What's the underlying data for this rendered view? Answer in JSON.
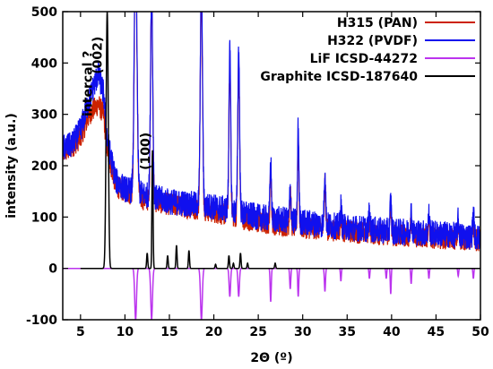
{
  "chart_data": {
    "type": "line",
    "xlabel": "2Θ (º)",
    "ylabel": "intensity (a.u.)",
    "xlim": [
      3,
      50
    ],
    "ylim": [
      -100,
      500
    ],
    "x_ticks": [
      5,
      10,
      15,
      20,
      25,
      30,
      35,
      40,
      45,
      50
    ],
    "y_ticks": [
      -100,
      0,
      100,
      200,
      300,
      400,
      500
    ],
    "legend_position": "top-right",
    "annotations": [
      {
        "text": "intercal ?",
        "x": 6.3,
        "y": 360
      },
      {
        "text": "(002)",
        "x": 7.4,
        "y": 415
      },
      {
        "text": "(100)",
        "x": 12.8,
        "y": 228
      }
    ],
    "series": [
      {
        "name": "H315 (PAN)",
        "color": "#cc2200",
        "noise_amp": 22,
        "background": [
          [
            3,
            225
          ],
          [
            4,
            235
          ],
          [
            5,
            255
          ],
          [
            6,
            300
          ],
          [
            7,
            320
          ],
          [
            7.6,
            300
          ],
          [
            8,
            230
          ],
          [
            9,
            160
          ],
          [
            10,
            150
          ],
          [
            12,
            135
          ],
          [
            15,
            125
          ],
          [
            20,
            110
          ],
          [
            25,
            90
          ],
          [
            30,
            80
          ],
          [
            35,
            72
          ],
          [
            40,
            65
          ],
          [
            45,
            60
          ],
          [
            50,
            55
          ]
        ],
        "peaks": [
          [
            11.2,
            480,
            0.15
          ],
          [
            13.0,
            420,
            0.12
          ],
          [
            18.6,
            440,
            0.12
          ],
          [
            21.8,
            300,
            0.1
          ],
          [
            22.8,
            300,
            0.1
          ],
          [
            26.4,
            100,
            0.08
          ],
          [
            28.6,
            70,
            0.08
          ],
          [
            29.5,
            170,
            0.08
          ],
          [
            32.5,
            100,
            0.08
          ],
          [
            34.3,
            30,
            0.08
          ],
          [
            37.5,
            25,
            0.08
          ],
          [
            39.9,
            45,
            0.08
          ],
          [
            42.2,
            30,
            0.08
          ],
          [
            44.2,
            25,
            0.08
          ],
          [
            47.5,
            20,
            0.08
          ],
          [
            49.2,
            25,
            0.08
          ]
        ]
      },
      {
        "name": "H322 (PVDF)",
        "color": "#1010ee",
        "noise_amp": 26,
        "background": [
          [
            3,
            235
          ],
          [
            4,
            240
          ],
          [
            5,
            270
          ],
          [
            6,
            330
          ],
          [
            7,
            380
          ],
          [
            7.6,
            340
          ],
          [
            8,
            250
          ],
          [
            9,
            170
          ],
          [
            10,
            155
          ],
          [
            12,
            145
          ],
          [
            15,
            130
          ],
          [
            20,
            120
          ],
          [
            25,
            100
          ],
          [
            30,
            90
          ],
          [
            35,
            80
          ],
          [
            40,
            72
          ],
          [
            45,
            68
          ],
          [
            50,
            60
          ]
        ],
        "peaks": [
          [
            11.2,
            480,
            0.15
          ],
          [
            13.0,
            420,
            0.12
          ],
          [
            18.6,
            440,
            0.12
          ],
          [
            21.8,
            310,
            0.1
          ],
          [
            22.8,
            320,
            0.1
          ],
          [
            26.4,
            110,
            0.08
          ],
          [
            28.6,
            60,
            0.08
          ],
          [
            29.5,
            185,
            0.08
          ],
          [
            32.5,
            110,
            0.08
          ],
          [
            34.3,
            40,
            0.08
          ],
          [
            37.5,
            30,
            0.08
          ],
          [
            39.9,
            60,
            0.08
          ],
          [
            42.2,
            40,
            0.08
          ],
          [
            44.2,
            35,
            0.08
          ],
          [
            47.5,
            30,
            0.08
          ],
          [
            49.2,
            45,
            0.08
          ]
        ]
      },
      {
        "name": "LiF ICSD-44272",
        "color": "#bb33ee",
        "baseline": 0,
        "direction": -1,
        "peaks": [
          [
            11.2,
            100,
            0.1
          ],
          [
            13.0,
            100,
            0.1
          ],
          [
            18.6,
            100,
            0.1
          ],
          [
            21.8,
            55,
            0.08
          ],
          [
            22.8,
            55,
            0.08
          ],
          [
            26.4,
            65,
            0.06
          ],
          [
            28.6,
            40,
            0.06
          ],
          [
            29.5,
            55,
            0.06
          ],
          [
            32.5,
            45,
            0.06
          ],
          [
            34.3,
            25,
            0.05
          ],
          [
            37.5,
            20,
            0.05
          ],
          [
            39.4,
            20,
            0.05
          ],
          [
            39.9,
            50,
            0.05
          ],
          [
            42.2,
            30,
            0.05
          ],
          [
            44.2,
            20,
            0.05
          ],
          [
            47.5,
            15,
            0.05
          ],
          [
            49.2,
            20,
            0.05
          ]
        ]
      },
      {
        "name": "Graphite ICSD-187640",
        "color": "#000000",
        "baseline": 0,
        "direction": 1,
        "x_start": 5,
        "peaks": [
          [
            8.0,
            500,
            0.12
          ],
          [
            12.5,
            30,
            0.06
          ],
          [
            13.1,
            230,
            0.06
          ],
          [
            14.8,
            25,
            0.06
          ],
          [
            15.8,
            45,
            0.06
          ],
          [
            17.2,
            35,
            0.06
          ],
          [
            20.2,
            8,
            0.06
          ],
          [
            21.7,
            25,
            0.06
          ],
          [
            22.2,
            10,
            0.06
          ],
          [
            23.0,
            30,
            0.06
          ],
          [
            23.8,
            10,
            0.06
          ],
          [
            26.9,
            10,
            0.06
          ]
        ]
      }
    ]
  }
}
